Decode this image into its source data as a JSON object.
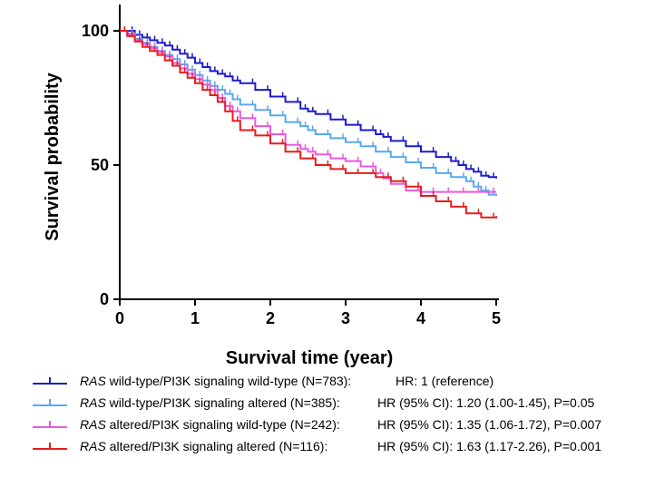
{
  "chart_data": {
    "type": "line",
    "subtype": "kaplan-meier",
    "title": "",
    "xlabel": "Survival time (year)",
    "ylabel": "Survival probability",
    "xlim": [
      0,
      5
    ],
    "ylim": [
      0,
      100
    ],
    "xticks": [
      "0",
      "1",
      "2",
      "3",
      "4",
      "5"
    ],
    "yticks": [
      "0",
      "50",
      "100"
    ],
    "grid": false,
    "legend_position": "bottom",
    "series": [
      {
        "name": "RAS wild-type/PI3K signaling wild-type (N=783)",
        "italic_prefix": "RAS",
        "label_rest": " wild-type/PI3K signaling wild-type (N=783):",
        "hr_text": "HR: 1 (reference)",
        "color": "#1c1ccf",
        "x": [
          0,
          0.1,
          0.2,
          0.3,
          0.4,
          0.5,
          0.6,
          0.7,
          0.8,
          0.9,
          1.0,
          1.1,
          1.2,
          1.3,
          1.4,
          1.5,
          1.6,
          1.8,
          2.0,
          2.2,
          2.4,
          2.5,
          2.6,
          2.8,
          3.0,
          3.2,
          3.4,
          3.5,
          3.6,
          3.8,
          4.0,
          4.2,
          4.4,
          4.5,
          4.6,
          4.7,
          4.8,
          4.9,
          5.0
        ],
        "y": [
          100,
          100,
          98.5,
          97.5,
          96.5,
          95.5,
          94.5,
          93,
          91.5,
          90,
          88,
          86.5,
          85,
          84,
          83,
          81.5,
          80.5,
          78,
          75.5,
          73.5,
          71,
          70,
          69,
          67,
          65,
          63,
          61.5,
          60.5,
          59,
          57,
          55,
          53,
          51.5,
          50,
          48.5,
          47.5,
          46,
          45.5,
          45
        ]
      },
      {
        "name": "RAS wild-type/PI3K signaling altered (N=385)",
        "italic_prefix": "RAS",
        "label_rest": " wild-type/PI3K signaling altered (N=385):",
        "hr_text": "HR (95% CI): 1.20 (1.00-1.45), P=0.05",
        "color": "#5aa8ee",
        "x": [
          0,
          0.1,
          0.2,
          0.3,
          0.4,
          0.5,
          0.6,
          0.7,
          0.8,
          0.9,
          1.0,
          1.1,
          1.2,
          1.3,
          1.4,
          1.5,
          1.6,
          1.8,
          2.0,
          2.2,
          2.4,
          2.5,
          2.6,
          2.8,
          3.0,
          3.2,
          3.4,
          3.6,
          3.8,
          4.0,
          4.2,
          4.4,
          4.6,
          4.7,
          4.8,
          4.9,
          5.0
        ],
        "y": [
          100,
          99,
          97,
          95.5,
          94,
          92.5,
          91,
          89.5,
          87.5,
          85.5,
          83.5,
          81.5,
          79.5,
          78,
          76.5,
          74.5,
          72.5,
          70.5,
          68.5,
          66,
          64.5,
          63,
          61.5,
          60,
          58.5,
          57,
          55,
          53,
          51,
          49,
          47,
          45.5,
          44,
          42,
          40.5,
          39,
          38.5
        ]
      },
      {
        "name": "RAS altered/PI3K signaling wild-type (N=242)",
        "italic_prefix": "RAS",
        "label_rest": " altered/PI3K signaling wild-type (N=242):",
        "hr_text": "HR (95% CI): 1.35 (1.06-1.72), P=0.007",
        "color": "#e85ae0",
        "x": [
          0,
          0.1,
          0.2,
          0.3,
          0.4,
          0.5,
          0.6,
          0.7,
          0.8,
          0.9,
          1.0,
          1.1,
          1.2,
          1.3,
          1.4,
          1.5,
          1.6,
          1.8,
          2.0,
          2.2,
          2.4,
          2.5,
          2.6,
          2.8,
          3.0,
          3.2,
          3.4,
          3.5,
          3.6,
          3.8,
          4.0,
          4.2,
          4.4,
          4.6,
          4.8,
          5.0
        ],
        "y": [
          100,
          98.5,
          96.5,
          95,
          93.5,
          92,
          90.5,
          88,
          86,
          84,
          82,
          80,
          78,
          75,
          72,
          70,
          67.5,
          64.5,
          61.5,
          57.5,
          56,
          55,
          54,
          52.5,
          51.5,
          49.5,
          47,
          45,
          43,
          40.5,
          40,
          40,
          40,
          40,
          40,
          40
        ]
      },
      {
        "name": "RAS altered/PI3K signaling altered (N=116)",
        "italic_prefix": "RAS",
        "label_rest": " altered/PI3K signaling altered (N=116):",
        "hr_text": "HR (95% CI): 1.63 (1.17-2.26), P=0.001",
        "color": "#e81c1c",
        "x": [
          0,
          0.1,
          0.2,
          0.3,
          0.4,
          0.5,
          0.6,
          0.7,
          0.8,
          0.9,
          1.0,
          1.1,
          1.2,
          1.3,
          1.4,
          1.5,
          1.6,
          1.8,
          2.0,
          2.2,
          2.4,
          2.6,
          2.8,
          3.0,
          3.2,
          3.4,
          3.6,
          3.8,
          4.0,
          4.2,
          4.4,
          4.6,
          4.8,
          5.0
        ],
        "y": [
          100,
          98,
          96,
          94,
          92.5,
          91,
          89,
          87,
          84.5,
          82.5,
          80.5,
          78,
          76,
          73.5,
          70,
          66.5,
          63,
          61,
          58,
          55,
          52.5,
          50,
          48.5,
          47,
          47,
          45.5,
          44,
          42,
          38.5,
          36.5,
          34.5,
          32,
          30.5,
          31
        ]
      }
    ]
  }
}
